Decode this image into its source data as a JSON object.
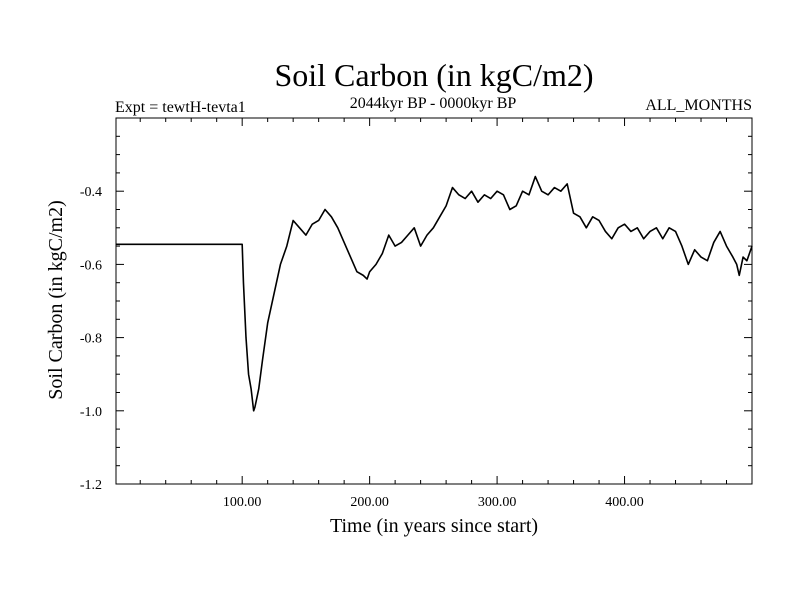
{
  "chart_data": {
    "type": "line",
    "title": "Soil Carbon (in kgC/m2)",
    "subtitle_left": "Expt = tewtH-tevta1",
    "subtitle_center": "2044kyr BP - 0000kyr BP",
    "subtitle_right": "ALL_MONTHS",
    "xlabel": "Time (in years since start)",
    "ylabel": "Soil Carbon (in kgC/m2)",
    "xlim": [
      1,
      500
    ],
    "ylim": [
      -1.2,
      -0.2
    ],
    "xticks": [
      {
        "value": 100,
        "label": "100.00"
      },
      {
        "value": 200,
        "label": "200.00"
      },
      {
        "value": 300,
        "label": "300.00"
      },
      {
        "value": 400,
        "label": "400.00"
      }
    ],
    "yticks": [
      {
        "value": -1.2,
        "label": "-1.2"
      },
      {
        "value": -1.0,
        "label": "-1.0"
      },
      {
        "value": -0.8,
        "label": "-0.8"
      },
      {
        "value": -0.6,
        "label": "-0.6"
      },
      {
        "value": -0.4,
        "label": "-0.4"
      }
    ],
    "grid": false,
    "series": [
      {
        "name": "Soil Carbon",
        "color": "#000000",
        "x": [
          1,
          99,
          100,
          101,
          103,
          105,
          107,
          109,
          110,
          113,
          116,
          120,
          125,
          130,
          135,
          140,
          145,
          150,
          155,
          160,
          165,
          170,
          175,
          180,
          185,
          190,
          195,
          198,
          200,
          205,
          210,
          215,
          220,
          225,
          230,
          235,
          240,
          245,
          250,
          255,
          260,
          265,
          270,
          275,
          280,
          285,
          290,
          295,
          300,
          305,
          310,
          315,
          320,
          325,
          330,
          335,
          340,
          345,
          350,
          355,
          360,
          365,
          370,
          375,
          380,
          385,
          390,
          395,
          400,
          405,
          410,
          415,
          420,
          425,
          430,
          435,
          440,
          445,
          450,
          455,
          460,
          465,
          470,
          475,
          480,
          485,
          488,
          490,
          493,
          496,
          500
        ],
        "y": [
          -0.545,
          -0.545,
          -0.545,
          -0.65,
          -0.8,
          -0.9,
          -0.94,
          -1.0,
          -0.99,
          -0.94,
          -0.86,
          -0.76,
          -0.68,
          -0.6,
          -0.55,
          -0.48,
          -0.5,
          -0.52,
          -0.49,
          -0.48,
          -0.45,
          -0.47,
          -0.5,
          -0.54,
          -0.58,
          -0.62,
          -0.63,
          -0.64,
          -0.62,
          -0.6,
          -0.57,
          -0.52,
          -0.55,
          -0.54,
          -0.52,
          -0.5,
          -0.55,
          -0.52,
          -0.5,
          -0.47,
          -0.44,
          -0.39,
          -0.41,
          -0.42,
          -0.4,
          -0.43,
          -0.41,
          -0.42,
          -0.4,
          -0.41,
          -0.45,
          -0.44,
          -0.4,
          -0.41,
          -0.36,
          -0.4,
          -0.41,
          -0.39,
          -0.4,
          -0.38,
          -0.46,
          -0.47,
          -0.5,
          -0.47,
          -0.48,
          -0.51,
          -0.53,
          -0.5,
          -0.49,
          -0.51,
          -0.5,
          -0.53,
          -0.51,
          -0.5,
          -0.53,
          -0.5,
          -0.51,
          -0.55,
          -0.6,
          -0.56,
          -0.58,
          -0.59,
          -0.54,
          -0.51,
          -0.55,
          -0.58,
          -0.6,
          -0.63,
          -0.58,
          -0.59,
          -0.55
        ]
      }
    ]
  }
}
